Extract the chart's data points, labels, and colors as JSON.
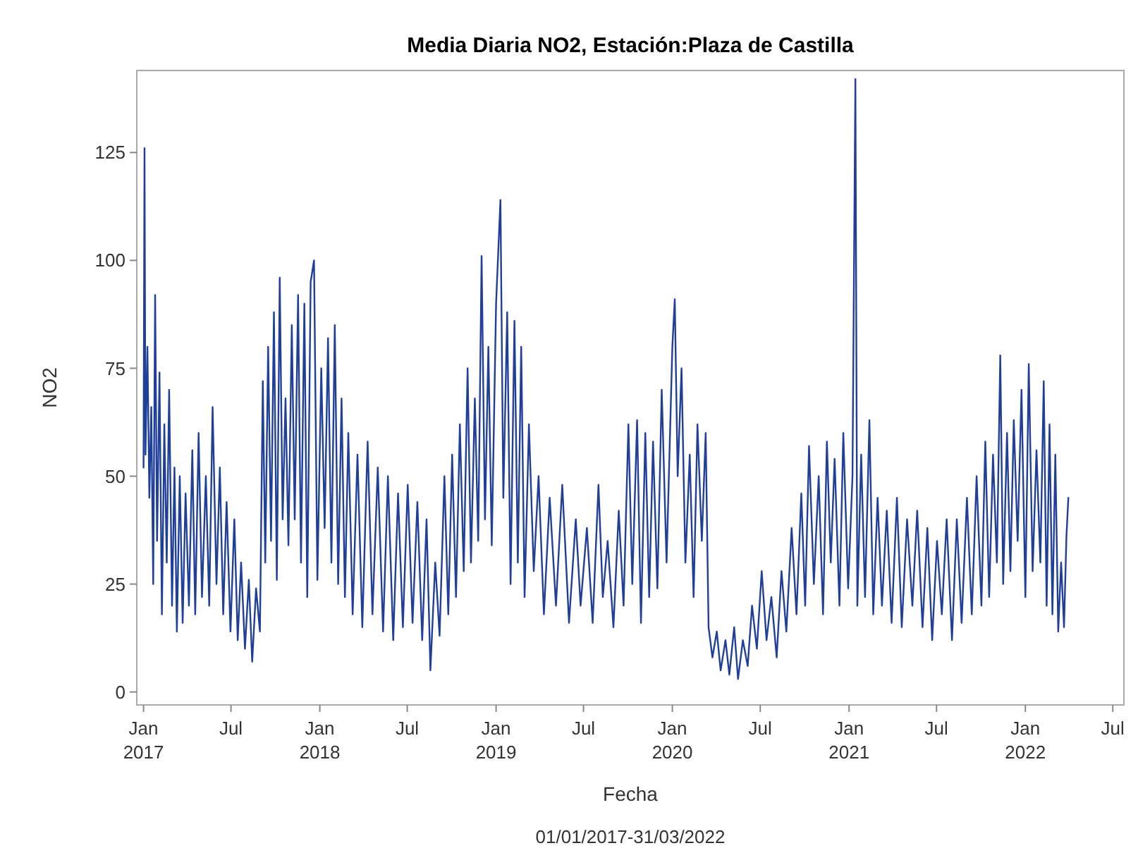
{
  "chart_data": {
    "type": "line",
    "title": "Media Diaria NO2, Estación:Plaza de Castilla",
    "xlabel": "Fecha",
    "ylabel": "NO2",
    "annotations": [
      "01/01/2017-31/03/2022"
    ],
    "xlim": [
      "2016-12-18",
      "2022-07-24"
    ],
    "xticks": [
      {
        "value": "2017-01-01",
        "label": "Jan\n2017"
      },
      {
        "value": "2017-07-01",
        "label": "Jul"
      },
      {
        "value": "2018-01-01",
        "label": "Jan\n2018"
      },
      {
        "value": "2018-07-01",
        "label": "Jul"
      },
      {
        "value": "2019-01-01",
        "label": "Jan\n2019"
      },
      {
        "value": "2019-07-01",
        "label": "Jul"
      },
      {
        "value": "2020-01-01",
        "label": "Jan\n2020"
      },
      {
        "value": "2020-07-01",
        "label": "Jul"
      },
      {
        "value": "2021-01-01",
        "label": "Jan\n2021"
      },
      {
        "value": "2021-07-01",
        "label": "Jul"
      },
      {
        "value": "2022-01-01",
        "label": "Jan\n2022"
      },
      {
        "value": "2022-07-01",
        "label": "Jul"
      }
    ],
    "ylim": [
      -3,
      144
    ],
    "yticks": [
      0,
      25,
      50,
      75,
      100,
      125
    ],
    "grid": false,
    "marker": "none",
    "line_style": "solid",
    "x": [
      "2017-01-01",
      "2017-01-03",
      "2017-01-05",
      "2017-01-09",
      "2017-01-13",
      "2017-01-17",
      "2017-01-21",
      "2017-01-25",
      "2017-01-29",
      "2017-02-03",
      "2017-02-08",
      "2017-02-13",
      "2017-02-18",
      "2017-02-23",
      "2017-03-01",
      "2017-03-06",
      "2017-03-11",
      "2017-03-17",
      "2017-03-23",
      "2017-03-29",
      "2017-04-05",
      "2017-04-12",
      "2017-04-18",
      "2017-04-25",
      "2017-05-02",
      "2017-05-10",
      "2017-05-17",
      "2017-05-24",
      "2017-06-01",
      "2017-06-08",
      "2017-06-15",
      "2017-06-22",
      "2017-06-30",
      "2017-07-08",
      "2017-07-15",
      "2017-07-22",
      "2017-07-30",
      "2017-08-07",
      "2017-08-14",
      "2017-08-22",
      "2017-08-30",
      "2017-09-05",
      "2017-09-10",
      "2017-09-16",
      "2017-09-22",
      "2017-09-28",
      "2017-10-04",
      "2017-10-10",
      "2017-10-16",
      "2017-10-22",
      "2017-10-28",
      "2017-11-04",
      "2017-11-10",
      "2017-11-17",
      "2017-11-23",
      "2017-11-30",
      "2017-12-06",
      "2017-12-13",
      "2017-12-20",
      "2017-12-27",
      "2018-01-04",
      "2018-01-11",
      "2018-01-18",
      "2018-01-25",
      "2018-02-01",
      "2018-02-08",
      "2018-02-15",
      "2018-02-22",
      "2018-03-01",
      "2018-03-10",
      "2018-03-20",
      "2018-03-30",
      "2018-04-10",
      "2018-04-20",
      "2018-05-01",
      "2018-05-12",
      "2018-05-22",
      "2018-06-02",
      "2018-06-12",
      "2018-06-22",
      "2018-07-02",
      "2018-07-12",
      "2018-07-22",
      "2018-08-01",
      "2018-08-10",
      "2018-08-18",
      "2018-08-28",
      "2018-09-06",
      "2018-09-16",
      "2018-09-24",
      "2018-10-02",
      "2018-10-10",
      "2018-10-18",
      "2018-10-26",
      "2018-11-03",
      "2018-11-10",
      "2018-11-18",
      "2018-11-25",
      "2018-12-02",
      "2018-12-09",
      "2018-12-16",
      "2018-12-23",
      "2019-01-01",
      "2019-01-10",
      "2019-01-16",
      "2019-01-24",
      "2019-01-31",
      "2019-02-08",
      "2019-02-15",
      "2019-02-22",
      "2019-03-01",
      "2019-03-10",
      "2019-03-20",
      "2019-03-30",
      "2019-04-10",
      "2019-04-22",
      "2019-05-05",
      "2019-05-18",
      "2019-06-01",
      "2019-06-15",
      "2019-06-25",
      "2019-07-08",
      "2019-07-20",
      "2019-08-01",
      "2019-08-10",
      "2019-08-20",
      "2019-09-01",
      "2019-09-12",
      "2019-09-22",
      "2019-10-02",
      "2019-10-10",
      "2019-10-20",
      "2019-10-28",
      "2019-11-06",
      "2019-11-14",
      "2019-11-22",
      "2019-12-01",
      "2019-12-10",
      "2019-12-20",
      "2020-01-01",
      "2020-01-06",
      "2020-01-12",
      "2020-01-20",
      "2020-01-28",
      "2020-02-06",
      "2020-02-14",
      "2020-02-22",
      "2020-03-02",
      "2020-03-10",
      "2020-03-16",
      "2020-03-24",
      "2020-04-02",
      "2020-04-10",
      "2020-04-20",
      "2020-04-28",
      "2020-05-08",
      "2020-05-16",
      "2020-05-26",
      "2020-06-05",
      "2020-06-14",
      "2020-06-24",
      "2020-07-04",
      "2020-07-14",
      "2020-07-24",
      "2020-08-04",
      "2020-08-14",
      "2020-08-24",
      "2020-09-04",
      "2020-09-14",
      "2020-09-24",
      "2020-10-02",
      "2020-10-10",
      "2020-10-20",
      "2020-10-30",
      "2020-11-08",
      "2020-11-16",
      "2020-11-24",
      "2020-12-02",
      "2020-12-12",
      "2020-12-20",
      "2020-12-30",
      "2021-01-08",
      "2021-01-14",
      "2021-01-18",
      "2021-01-26",
      "2021-02-03",
      "2021-02-12",
      "2021-02-20",
      "2021-03-01",
      "2021-03-10",
      "2021-03-20",
      "2021-03-30",
      "2021-04-10",
      "2021-04-20",
      "2021-05-01",
      "2021-05-12",
      "2021-05-22",
      "2021-06-02",
      "2021-06-12",
      "2021-06-22",
      "2021-07-02",
      "2021-07-12",
      "2021-07-22",
      "2021-08-02",
      "2021-08-12",
      "2021-08-22",
      "2021-09-02",
      "2021-09-12",
      "2021-09-22",
      "2021-10-02",
      "2021-10-10",
      "2021-10-18",
      "2021-10-26",
      "2021-11-03",
      "2021-11-10",
      "2021-11-16",
      "2021-11-24",
      "2021-12-01",
      "2021-12-08",
      "2021-12-16",
      "2021-12-24",
      "2022-01-01",
      "2022-01-08",
      "2022-01-16",
      "2022-01-24",
      "2022-02-01",
      "2022-02-08",
      "2022-02-14",
      "2022-02-20",
      "2022-02-26",
      "2022-03-04",
      "2022-03-10",
      "2022-03-16",
      "2022-03-22",
      "2022-03-27",
      "2022-03-31"
    ],
    "series": [
      {
        "color": "#1f3f99",
        "values": [
          52,
          126,
          55,
          80,
          45,
          66,
          25,
          92,
          35,
          74,
          18,
          62,
          30,
          70,
          20,
          52,
          14,
          50,
          16,
          46,
          20,
          56,
          18,
          60,
          22,
          50,
          20,
          66,
          25,
          52,
          18,
          44,
          14,
          40,
          12,
          30,
          10,
          26,
          7,
          24,
          14,
          72,
          30,
          80,
          35,
          88,
          26,
          96,
          40,
          68,
          34,
          85,
          40,
          92,
          30,
          90,
          22,
          95,
          100,
          26,
          75,
          38,
          82,
          30,
          85,
          25,
          68,
          22,
          60,
          18,
          55,
          15,
          58,
          18,
          52,
          14,
          50,
          12,
          46,
          15,
          48,
          16,
          44,
          12,
          40,
          5,
          30,
          13,
          50,
          18,
          55,
          22,
          62,
          28,
          75,
          30,
          68,
          35,
          101,
          40,
          80,
          34,
          90,
          114,
          45,
          88,
          25,
          86,
          30,
          80,
          22,
          62,
          28,
          50,
          18,
          45,
          20,
          48,
          16,
          40,
          20,
          38,
          16,
          48,
          22,
          35,
          15,
          42,
          20,
          62,
          25,
          63,
          16,
          60,
          22,
          58,
          24,
          70,
          30,
          80,
          91,
          50,
          75,
          30,
          55,
          22,
          62,
          35,
          60,
          15,
          8,
          14,
          5,
          12,
          4,
          15,
          3,
          12,
          6,
          20,
          10,
          28,
          12,
          22,
          8,
          28,
          14,
          38,
          18,
          46,
          20,
          57,
          25,
          50,
          18,
          58,
          30,
          54,
          20,
          60,
          24,
          50,
          142,
          20,
          55,
          22,
          63,
          18,
          45,
          20,
          42,
          16,
          45,
          15,
          40,
          20,
          42,
          15,
          38,
          12,
          35,
          18,
          40,
          12,
          40,
          16,
          45,
          18,
          50,
          20,
          58,
          22,
          55,
          30,
          78,
          25,
          60,
          28,
          63,
          35,
          70,
          22,
          76,
          28,
          56,
          30,
          72,
          20,
          62,
          18,
          55,
          14,
          30,
          15,
          36,
          45
        ]
      }
    ]
  }
}
